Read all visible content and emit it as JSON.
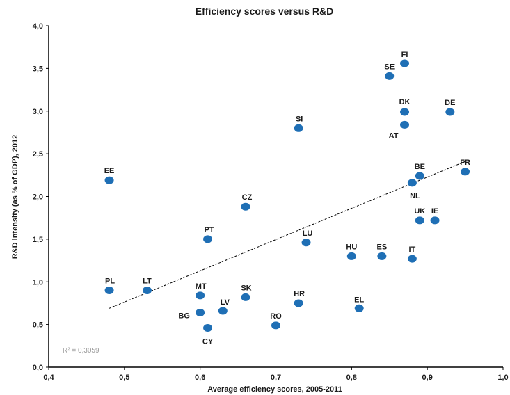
{
  "chart_data": {
    "type": "scatter",
    "title": "Efficiency scores versus R&D",
    "xlabel": "Average efficiency scores, 2005-2011",
    "ylabel": "R&D intensity (as % of GDP), 2012",
    "xlim": [
      0.4,
      1.0
    ],
    "ylim": [
      0.0,
      4.0
    ],
    "x_ticks": [
      "0,4",
      "0,5",
      "0,6",
      "0,7",
      "0,8",
      "0,9",
      "1,0"
    ],
    "y_ticks": [
      "0,0",
      "0,5",
      "1,0",
      "1,5",
      "2,0",
      "2,5",
      "3,0",
      "3,5",
      "4,0"
    ],
    "grid": false,
    "marker_color": "#1f6fb5",
    "trendline": {
      "style": "dashed",
      "x": [
        0.48,
        0.95
      ],
      "y": [
        0.69,
        2.41
      ],
      "r2_label": "R² = 0,3059"
    },
    "points": [
      {
        "label": "FI",
        "x": 0.87,
        "y": 3.56
      },
      {
        "label": "SE",
        "x": 0.85,
        "y": 3.41
      },
      {
        "label": "DK",
        "x": 0.87,
        "y": 2.99
      },
      {
        "label": "DE",
        "x": 0.93,
        "y": 2.99
      },
      {
        "label": "AT",
        "x": 0.87,
        "y": 2.84
      },
      {
        "label": "SI",
        "x": 0.73,
        "y": 2.8
      },
      {
        "label": "FR",
        "x": 0.95,
        "y": 2.29
      },
      {
        "label": "BE",
        "x": 0.89,
        "y": 2.24
      },
      {
        "label": "NL",
        "x": 0.88,
        "y": 2.16
      },
      {
        "label": "EE",
        "x": 0.48,
        "y": 2.19
      },
      {
        "label": "CZ",
        "x": 0.66,
        "y": 1.88
      },
      {
        "label": "UK",
        "x": 0.89,
        "y": 1.72
      },
      {
        "label": "IE",
        "x": 0.91,
        "y": 1.72
      },
      {
        "label": "PT",
        "x": 0.61,
        "y": 1.5
      },
      {
        "label": "LU",
        "x": 0.74,
        "y": 1.46
      },
      {
        "label": "HU",
        "x": 0.8,
        "y": 1.3
      },
      {
        "label": "ES",
        "x": 0.84,
        "y": 1.3
      },
      {
        "label": "IT",
        "x": 0.88,
        "y": 1.27
      },
      {
        "label": "PL",
        "x": 0.48,
        "y": 0.9
      },
      {
        "label": "LT",
        "x": 0.53,
        "y": 0.9
      },
      {
        "label": "MT",
        "x": 0.6,
        "y": 0.84
      },
      {
        "label": "SK",
        "x": 0.66,
        "y": 0.82
      },
      {
        "label": "HR",
        "x": 0.73,
        "y": 0.75
      },
      {
        "label": "EL",
        "x": 0.81,
        "y": 0.69
      },
      {
        "label": "LV",
        "x": 0.63,
        "y": 0.66
      },
      {
        "label": "BG",
        "x": 0.6,
        "y": 0.64
      },
      {
        "label": "RO",
        "x": 0.7,
        "y": 0.49
      },
      {
        "label": "CY",
        "x": 0.61,
        "y": 0.46
      }
    ]
  }
}
